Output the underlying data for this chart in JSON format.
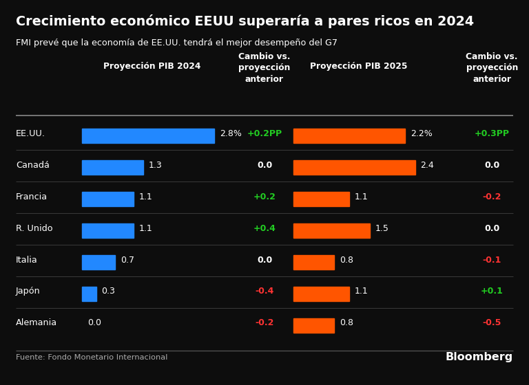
{
  "title": "Crecimiento económico EEUU superaría a pares ricos en 2024",
  "subtitle": "FMI prevé que la economía de EE.UU. tendrá el mejor desempeño del G7",
  "background_color": "#0d0d0d",
  "text_color": "#ffffff",
  "countries": [
    "EE.UU.",
    "Canadá",
    "Francia",
    "R. Unido",
    "Italia",
    "Japón",
    "Alemania"
  ],
  "pib2024": [
    2.8,
    1.3,
    1.1,
    1.1,
    0.7,
    0.3,
    0.0
  ],
  "pib2024_labels": [
    "2.8%",
    "1.3",
    "1.1",
    "1.1",
    "0.7",
    "0.3",
    "0.0"
  ],
  "cambio2024": [
    "+0.2PP",
    "0.0",
    "+0.2",
    "+0.4",
    "0.0",
    "-0.4",
    "-0.2"
  ],
  "cambio2024_colors": [
    "#22cc22",
    "#ffffff",
    "#22cc22",
    "#22cc22",
    "#ffffff",
    "#ff3333",
    "#ff3333"
  ],
  "pib2025": [
    2.2,
    2.4,
    1.1,
    1.5,
    0.8,
    1.1,
    0.8
  ],
  "pib2025_labels": [
    "2.2%",
    "2.4",
    "1.1",
    "1.5",
    "0.8",
    "1.1",
    "0.8"
  ],
  "cambio2025": [
    "+0.3PP",
    "0.0",
    "-0.2",
    "0.0",
    "-0.1",
    "+0.1",
    "-0.5"
  ],
  "cambio2025_colors": [
    "#22cc22",
    "#ffffff",
    "#ff3333",
    "#ffffff",
    "#ff3333",
    "#22cc22",
    "#ff3333"
  ],
  "bar_color_2024": "#2288ff",
  "bar_color_2025": "#ff5500",
  "col_header_2024": "Proyección PIB 2024",
  "col_header_cambio": "Cambio vs.\nproyección\nanterior",
  "col_header_2025": "Proyección PIB 2025",
  "col_header_cambio2": "Cambio vs.\nproyección\nanterior",
  "footer_left": "Fuente: Fondo Monetario Internacional",
  "footer_right": "Bloomberg",
  "max_bar_2024": 2.8,
  "max_bar_2025": 2.4
}
